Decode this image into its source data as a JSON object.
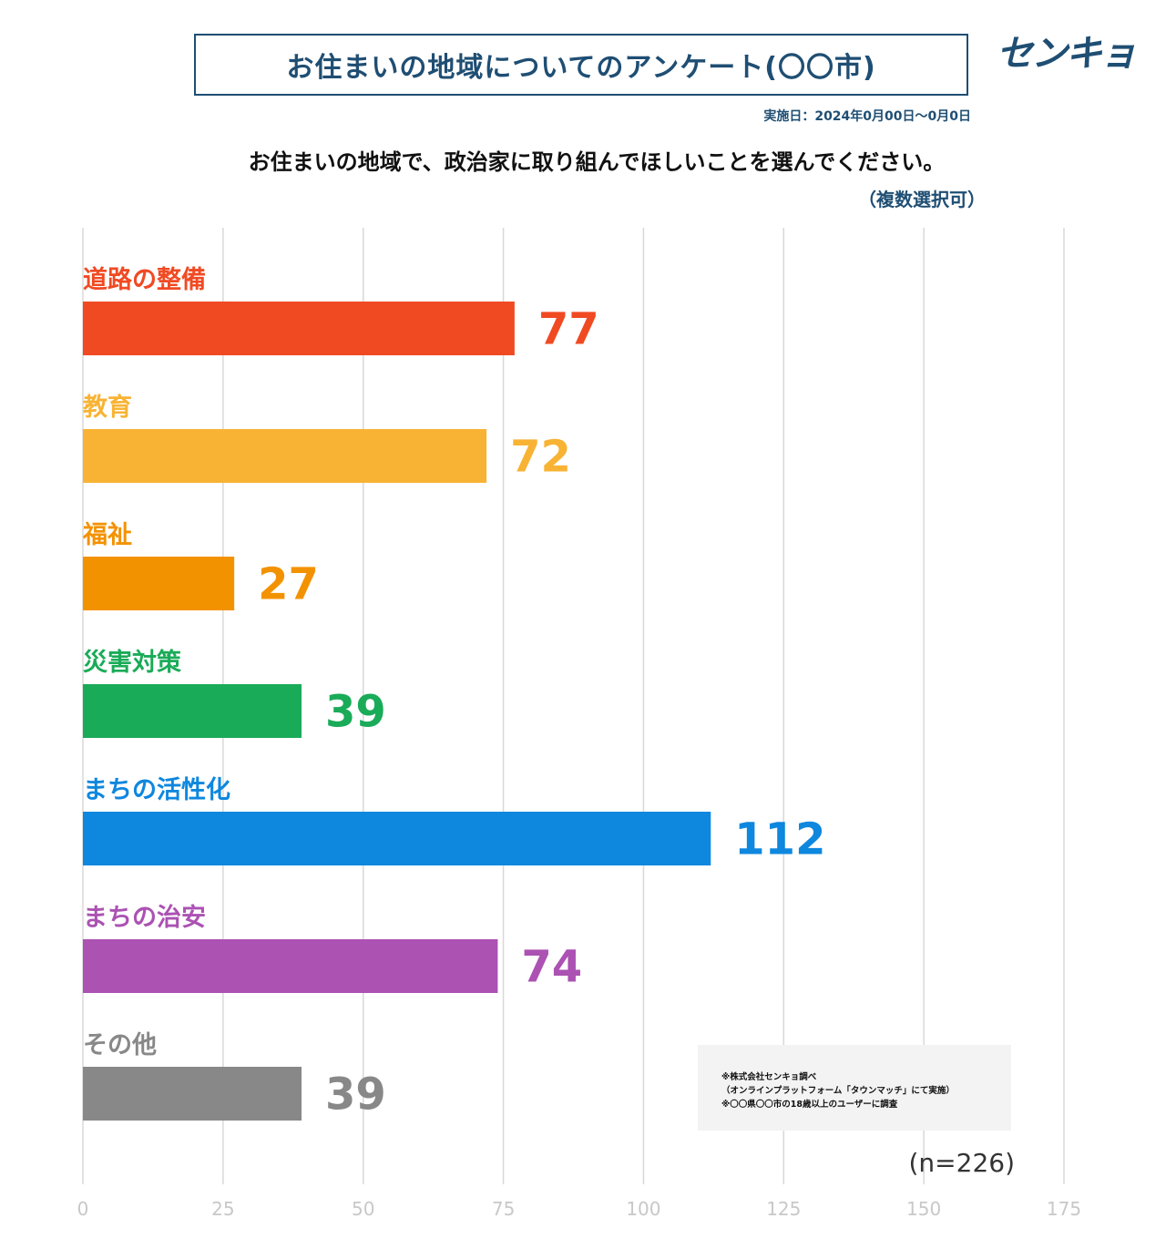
{
  "header": {
    "title": "お住まいの地域についてのアンケート(〇〇市)",
    "logo_text": "センキョ",
    "survey_date": "実施日：2024年0月00日～0月0日",
    "question": "お住まいの地域で、政治家に取り組んでほしいことを選んでください。",
    "multi_select_note": "（複数選択可）"
  },
  "notes": {
    "source_lines": [
      "※株式会社センキョ調べ",
      "（オンラインプラットフォーム「タウンマッチ」にて実施）",
      "※〇〇県〇〇市の18歳以上のユーザーに調査"
    ],
    "sample_size": "(n=226)"
  },
  "chart_data": {
    "type": "bar",
    "orientation": "horizontal",
    "categories": [
      "道路の整備",
      "教育",
      "福祉",
      "災害対策",
      "まちの活性化",
      "まちの治安",
      "その他"
    ],
    "values": [
      77,
      72,
      27,
      39,
      112,
      74,
      39
    ],
    "colors": [
      "#f04a23",
      "#f8b334",
      "#f39200",
      "#1aab58",
      "#0e87de",
      "#ab52b3",
      "#888888"
    ],
    "xlim": [
      0,
      175
    ],
    "xticks": [
      0,
      25,
      50,
      75,
      100,
      125,
      150,
      175
    ],
    "grid": true,
    "axis_tick_color": "#c8c8c8",
    "grid_color": "#d8d8d8"
  }
}
